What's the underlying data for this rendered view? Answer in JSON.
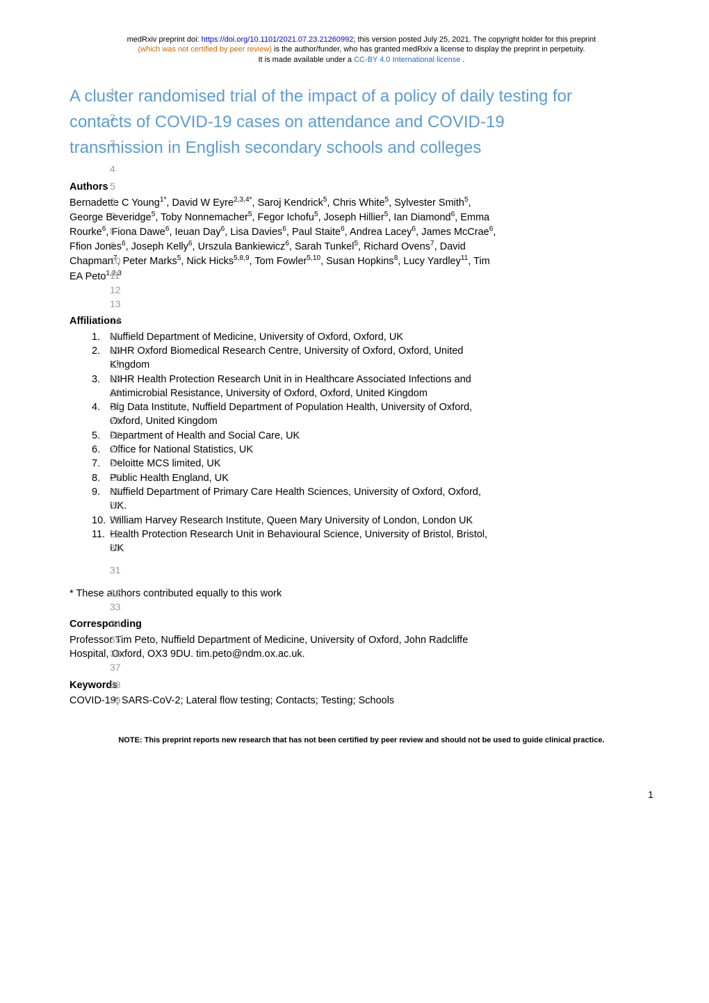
{
  "preprint_header": {
    "line1_prefix": "medRxiv preprint doi: ",
    "doi_url": "https://doi.org/10.1101/2021.07.23.21260992",
    "line1_suffix": "; this version posted July 25, 2021. The copyright holder for this preprint",
    "line2_orange": "(which was not certified by peer review)",
    "line2_rest": " is the author/funder, who has granted medRxiv a license to display the preprint in perpetuity.",
    "line3_prefix": "It is made available under a ",
    "license_text": "CC-BY 4.0 International license",
    "line3_suffix": " ."
  },
  "title_lines": {
    "l1": "A cluster randomised trial of the impact of a policy of daily testing for",
    "l2": "contacts of COVID-19 cases on attendance and COVID-19",
    "l3": "transmission in English secondary schools and colleges"
  },
  "headings": {
    "authors": "Authors",
    "affiliations": "Affiliations",
    "corresponding": "Corresponding",
    "keywords": "Keywords"
  },
  "line_numbers": [
    "1",
    "2",
    "3",
    "4",
    "5",
    "6",
    "7",
    "8",
    "9",
    "10",
    "11",
    "12",
    "13",
    "14",
    "15",
    "16",
    "17",
    "18",
    "19",
    "20",
    "21",
    "22",
    "23",
    "24",
    "25",
    "26",
    "27",
    "28",
    "29",
    "30",
    "31",
    "32",
    "33",
    "34",
    "35",
    "36",
    "37",
    "38",
    "39"
  ],
  "authors_html": [
    "Bernadette C Young<sup>1*</sup>, David W Eyre<sup>2,3,4*</sup>, Saroj Kendrick<sup>5</sup>, Chris White<sup>5</sup>, Sylvester Smith<sup>5</sup>,",
    "George Beveridge<sup>5</sup>, Toby Nonnemacher<sup>5</sup>, Fegor Ichofu<sup>5</sup>, Joseph Hillier<sup>5</sup>, Ian Diamond<sup>6</sup>, Emma",
    "Rourke<sup>6</sup>, Fiona Dawe<sup>6</sup>, Ieuan Day<sup>6</sup>, Lisa Davies<sup>6</sup>, Paul Staite<sup>6</sup>, Andrea Lacey<sup>6</sup>, James McCrae<sup>6</sup>,",
    "Ffion Jones<sup>6</sup>, Joseph Kelly<sup>6</sup>, Urszula Bankiewicz<sup>6</sup>, Sarah Tunkel<sup>5</sup>, Richard Ovens<sup>7</sup>, David",
    "Chapman<sup>7</sup>, Peter Marks<sup>5</sup>, Nick Hicks<sup>5,8,9</sup>, Tom Fowler<sup>5,10</sup>, Susan Hopkins<sup>8</sup>, Lucy Yardley<sup>11</sup>, Tim",
    "EA Peto<sup>1,2,3</sup>"
  ],
  "affiliations": [
    {
      "num": "1.",
      "text": "Nuffield Department of Medicine, University of Oxford, Oxford, UK"
    },
    {
      "num": "2.",
      "text_lines": [
        "NIHR Oxford Biomedical Research Centre, University of Oxford, Oxford, United",
        "Kingdom"
      ]
    },
    {
      "num": "3.",
      "text_lines": [
        "NIHR Health Protection Research Unit in in Healthcare Associated Infections and",
        "Antimicrobial Resistance, University of Oxford, Oxford, United Kingdom"
      ]
    },
    {
      "num": "4.",
      "text_lines": [
        "Big Data Institute, Nuffield Department of Population Health, University of Oxford,",
        "Oxford, United Kingdom"
      ]
    },
    {
      "num": "5.",
      "text": "Department of Health and Social Care, UK"
    },
    {
      "num": "6.",
      "text": "Office for National Statistics, UK"
    },
    {
      "num": "7.",
      "text": "Deloitte MCS limited, UK"
    },
    {
      "num": "8.",
      "text": "Public Health England, UK"
    },
    {
      "num": "9.",
      "text_lines": [
        "Nuffield Department of Primary Care Health Sciences, University of Oxford, Oxford,",
        "UK."
      ]
    },
    {
      "num": "10.",
      "text": "William Harvey Research Institute, Queen Mary University of London, London UK"
    },
    {
      "num": "11.",
      "text_lines": [
        "Health Protection Research Unit in Behavioural Science, University of Bristol, Bristol,",
        "UK"
      ]
    }
  ],
  "equal_contribution": "* These authors contributed equally to this work",
  "corresponding_lines": [
    "Professor Tim Peto, Nuffield Department of Medicine, University of Oxford, John Radcliffe",
    "Hospital, Oxford, OX3 9DU. tim.peto@ndm.ox.ac.uk."
  ],
  "keywords": "COVID-19; SARS-CoV-2; Lateral flow testing; Contacts; Testing; Schools",
  "footer_note": "NOTE: This preprint reports new research that has not been certified by peer review and should not be used to guide clinical practice.",
  "page_number": "1",
  "colors": {
    "title_color": "#5b9bd5",
    "line_num_color": "#999999",
    "link_blue": "#0000cc",
    "orange": "#cc6600",
    "license_blue": "#2266cc",
    "text_color": "#000000",
    "background": "#ffffff"
  }
}
